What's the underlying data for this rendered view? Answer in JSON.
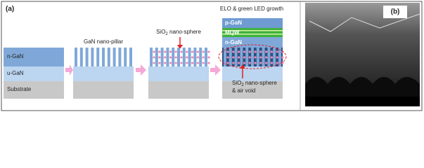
{
  "panel_a": {
    "label": "(a)",
    "stack1": {
      "layers": [
        "n-GaN",
        "u-GaN",
        "Substrate"
      ]
    },
    "stack2": {
      "title": "GaN nano-pillar"
    },
    "stack3": {
      "title": {
        "prefix": "SiO",
        "sub": "2",
        "suffix": " nano-sphere"
      }
    },
    "stack4": {
      "title": "ELO & green LED growth",
      "layers": [
        "p-GaN",
        "MQW",
        "n-GaN"
      ],
      "annotation": {
        "prefix": "SiO",
        "sub": "2",
        "suffix": " nano-sphere",
        "line2": "& air void"
      }
    }
  },
  "panel_b": {
    "label": "(b)"
  }
}
